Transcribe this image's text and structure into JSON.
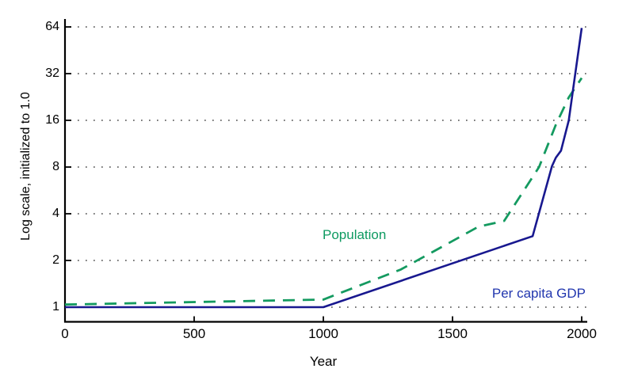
{
  "chart_data": {
    "type": "line",
    "title": "",
    "xlabel": "Year",
    "ylabel": "Log scale, initialized to 1.0",
    "x_axis": {
      "min": 0,
      "max": 2000,
      "ticks": [
        0,
        500,
        1000,
        1500,
        2000
      ],
      "tick_labels": [
        "0",
        "500",
        "1000",
        "1500",
        "2000"
      ]
    },
    "y_axis": {
      "scale": "log2",
      "min": 1,
      "max": 64,
      "ticks": [
        64,
        32,
        16,
        8,
        4,
        2,
        1
      ],
      "tick_labels": [
        "64",
        "32",
        "16",
        "8",
        "4",
        "2",
        "1"
      ]
    },
    "grid": {
      "horizontal": "dotted",
      "color": "#666666"
    },
    "axis_color": "#000000",
    "legend_position": "inline-labels",
    "series": [
      {
        "name": "Population",
        "style": "dashed",
        "color": "#149a60",
        "label_color": "#0e9a61",
        "points": [
          [
            0,
            1.04
          ],
          [
            1000,
            1.12
          ],
          [
            1300,
            1.75
          ],
          [
            1600,
            3.3
          ],
          [
            1700,
            3.6
          ],
          [
            1835,
            8.0
          ],
          [
            1900,
            15.0
          ],
          [
            1950,
            22.5
          ],
          [
            2000,
            30.0
          ]
        ]
      },
      {
        "name": "Per capita GDP",
        "style": "solid",
        "color": "#18188f",
        "label_color": "#2136ae",
        "points": [
          [
            0,
            1.0
          ],
          [
            1000,
            1.0
          ],
          [
            1810,
            2.87
          ],
          [
            1885,
            8.1
          ],
          [
            1900,
            9.2
          ],
          [
            1920,
            10.2
          ],
          [
            1950,
            16.0
          ],
          [
            1975,
            32.0
          ],
          [
            2000,
            63.0
          ]
        ]
      }
    ]
  }
}
